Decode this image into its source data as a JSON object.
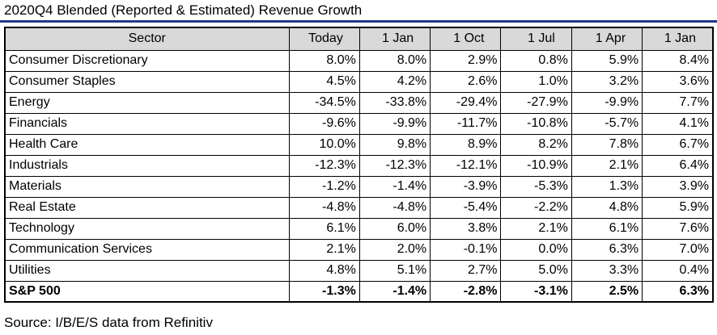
{
  "title": "2020Q4 Blended (Reported & Estimated) Revenue Growth",
  "table": {
    "headers": [
      "Sector",
      "Today",
      "1 Jan",
      "1 Oct",
      "1 Jul",
      "1 Apr",
      "1 Jan"
    ],
    "rows": [
      {
        "sector": "Consumer Discretionary",
        "values": [
          "8.0%",
          "8.0%",
          "2.9%",
          "0.8%",
          "5.9%",
          "8.4%"
        ]
      },
      {
        "sector": "Consumer Staples",
        "values": [
          "4.5%",
          "4.2%",
          "2.6%",
          "1.0%",
          "3.2%",
          "3.6%"
        ]
      },
      {
        "sector": "Energy",
        "values": [
          "-34.5%",
          "-33.8%",
          "-29.4%",
          "-27.9%",
          "-9.9%",
          "7.7%"
        ]
      },
      {
        "sector": "Financials",
        "values": [
          "-9.6%",
          "-9.9%",
          "-11.7%",
          "-10.8%",
          "-5.7%",
          "4.1%"
        ]
      },
      {
        "sector": "Health Care",
        "values": [
          "10.0%",
          "9.8%",
          "8.9%",
          "8.2%",
          "7.8%",
          "6.7%"
        ]
      },
      {
        "sector": "Industrials",
        "values": [
          "-12.3%",
          "-12.3%",
          "-12.1%",
          "-10.9%",
          "2.1%",
          "6.4%"
        ]
      },
      {
        "sector": "Materials",
        "values": [
          "-1.2%",
          "-1.4%",
          "-3.9%",
          "-5.3%",
          "1.3%",
          "3.9%"
        ]
      },
      {
        "sector": "Real Estate",
        "values": [
          "-4.8%",
          "-4.8%",
          "-5.4%",
          "-2.2%",
          "4.8%",
          "5.9%"
        ]
      },
      {
        "sector": "Technology",
        "values": [
          "6.1%",
          "6.0%",
          "3.8%",
          "2.1%",
          "6.1%",
          "7.6%"
        ]
      },
      {
        "sector": "Communication Services",
        "values": [
          "2.1%",
          "2.0%",
          "-0.1%",
          "0.0%",
          "6.3%",
          "7.0%"
        ]
      },
      {
        "sector": "Utilities",
        "values": [
          "4.8%",
          "5.1%",
          "2.7%",
          "5.0%",
          "3.3%",
          "0.4%"
        ]
      }
    ],
    "total": {
      "sector": "S&P 500",
      "values": [
        "-1.3%",
        "-1.4%",
        "-2.8%",
        "-3.1%",
        "2.5%",
        "6.3%"
      ]
    }
  },
  "source": "Source: I/B/E/S data from Refinitiv",
  "colors": {
    "header_bg": "#d9d9d9",
    "rule": "#1f3a8a"
  }
}
